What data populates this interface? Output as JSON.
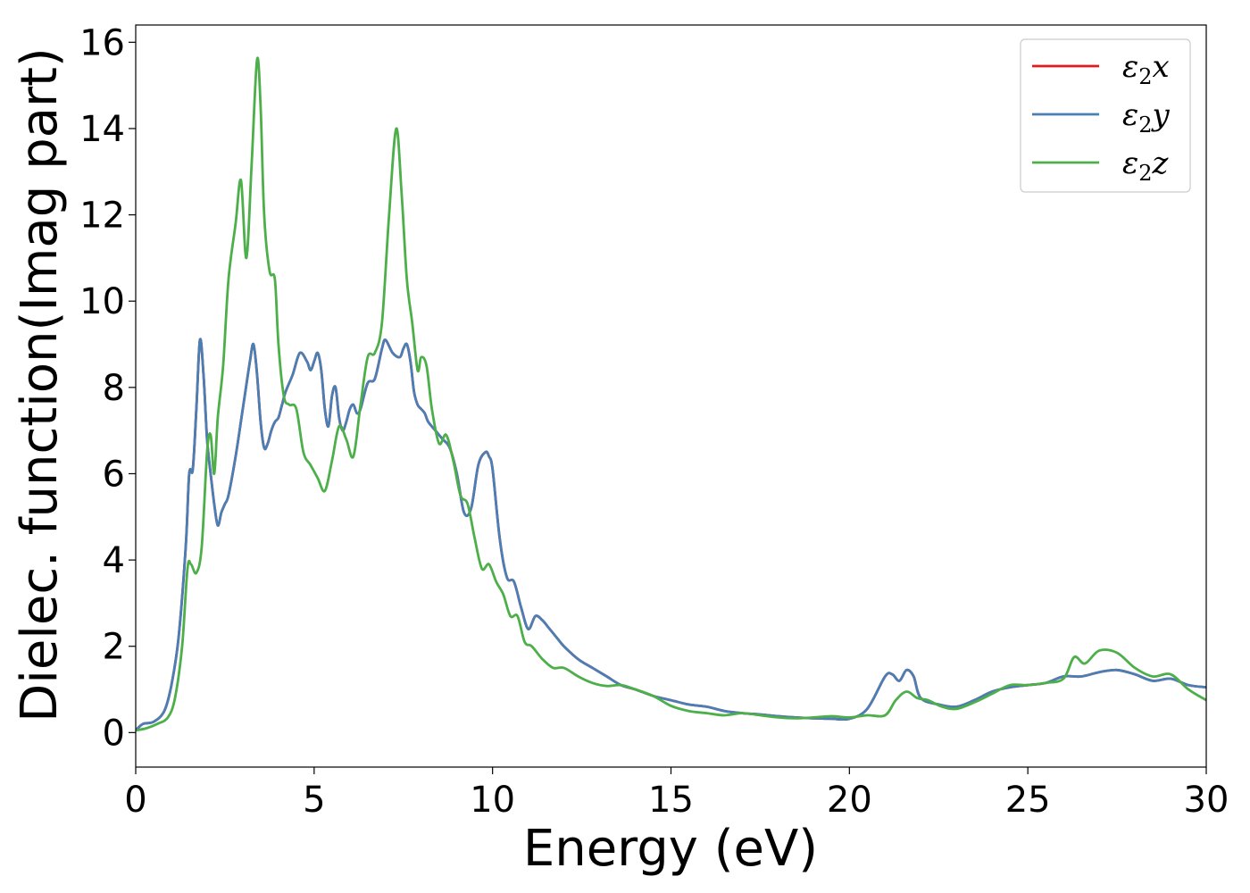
{
  "chart_data": {
    "type": "line",
    "title": "",
    "xlabel": "Energy (eV)",
    "ylabel": "Dielec. function(Imag part)",
    "xlim": [
      0,
      30
    ],
    "ylim": [
      -0.8,
      16.4
    ],
    "xticks": [
      0,
      5,
      10,
      15,
      20,
      25,
      30
    ],
    "yticks": [
      0,
      2,
      4,
      6,
      8,
      10,
      12,
      14,
      16
    ],
    "grid": false,
    "legend_position": "top-right",
    "series": [
      {
        "name": "ε2x",
        "legend_base": "ε",
        "legend_sub": "2",
        "legend_var": "x",
        "color": "#e41a1c",
        "x": [
          0,
          0.2,
          0.5,
          0.8,
          1.0,
          1.2,
          1.4,
          1.5,
          1.6,
          1.7,
          1.8,
          1.9,
          2.0,
          2.1,
          2.2,
          2.3,
          2.4,
          2.5,
          2.6,
          2.8,
          3.0,
          3.2,
          3.3,
          3.4,
          3.5,
          3.6,
          3.7,
          3.8,
          3.9,
          4.0,
          4.1,
          4.2,
          4.4,
          4.6,
          4.8,
          4.9,
          5.0,
          5.1,
          5.2,
          5.3,
          5.4,
          5.5,
          5.6,
          5.7,
          5.8,
          5.9,
          6.0,
          6.1,
          6.2,
          6.3,
          6.5,
          6.7,
          6.9,
          7.0,
          7.2,
          7.4,
          7.5,
          7.6,
          7.7,
          7.8,
          7.9,
          8.0,
          8.1,
          8.2,
          8.4,
          8.6,
          8.8,
          9.0,
          9.2,
          9.4,
          9.6,
          9.8,
          9.9,
          10.0,
          10.2,
          10.4,
          10.6,
          10.8,
          11.0,
          11.2,
          11.4,
          11.6,
          11.8,
          12.0,
          12.4,
          12.8,
          13.2,
          13.6,
          14.0,
          14.5,
          15.0,
          15.5,
          16.0,
          16.5,
          17.0,
          17.5,
          18.0,
          18.5,
          19.0,
          19.5,
          20.0,
          20.5,
          21.0,
          21.2,
          21.4,
          21.6,
          21.8,
          22.0,
          22.5,
          23.0,
          23.5,
          24.0,
          24.5,
          25.0,
          25.5,
          26.0,
          26.5,
          27.0,
          27.5,
          28.0,
          28.5,
          29.0,
          29.5,
          30.0
        ],
        "y": [
          0.05,
          0.2,
          0.25,
          0.5,
          1.1,
          2.2,
          4.3,
          6.0,
          6.1,
          7.5,
          9.1,
          8.3,
          6.8,
          6.0,
          5.3,
          4.8,
          5.1,
          5.3,
          5.5,
          6.4,
          7.5,
          8.6,
          9.0,
          8.3,
          7.2,
          6.6,
          6.7,
          7.0,
          7.2,
          7.3,
          7.6,
          7.9,
          8.3,
          8.8,
          8.6,
          8.4,
          8.6,
          8.8,
          8.4,
          7.5,
          7.1,
          7.8,
          8.0,
          7.3,
          7.0,
          7.2,
          7.5,
          7.6,
          7.4,
          7.5,
          8.1,
          8.2,
          8.9,
          9.1,
          8.8,
          8.7,
          8.9,
          9.0,
          8.6,
          7.9,
          7.6,
          7.5,
          7.4,
          7.2,
          7.0,
          6.8,
          6.6,
          6.0,
          5.1,
          5.2,
          6.2,
          6.5,
          6.4,
          6.1,
          4.5,
          3.6,
          3.5,
          2.9,
          2.4,
          2.7,
          2.6,
          2.4,
          2.2,
          2.0,
          1.7,
          1.5,
          1.3,
          1.1,
          1.0,
          0.85,
          0.75,
          0.65,
          0.6,
          0.5,
          0.45,
          0.42,
          0.38,
          0.35,
          0.33,
          0.32,
          0.32,
          0.55,
          1.3,
          1.35,
          1.2,
          1.45,
          1.3,
          0.8,
          0.65,
          0.6,
          0.75,
          0.95,
          1.05,
          1.1,
          1.15,
          1.3,
          1.3,
          1.4,
          1.45,
          1.35,
          1.2,
          1.25,
          1.1,
          1.05
        ]
      },
      {
        "name": "ε2y",
        "legend_base": "ε",
        "legend_sub": "2",
        "legend_var": "y",
        "color": "#4a7fb5",
        "x": [
          0,
          0.2,
          0.5,
          0.8,
          1.0,
          1.2,
          1.4,
          1.5,
          1.6,
          1.7,
          1.8,
          1.9,
          2.0,
          2.1,
          2.2,
          2.3,
          2.4,
          2.5,
          2.6,
          2.8,
          3.0,
          3.2,
          3.3,
          3.4,
          3.5,
          3.6,
          3.7,
          3.8,
          3.9,
          4.0,
          4.1,
          4.2,
          4.4,
          4.6,
          4.8,
          4.9,
          5.0,
          5.1,
          5.2,
          5.3,
          5.4,
          5.5,
          5.6,
          5.7,
          5.8,
          5.9,
          6.0,
          6.1,
          6.2,
          6.3,
          6.5,
          6.7,
          6.9,
          7.0,
          7.2,
          7.4,
          7.5,
          7.6,
          7.7,
          7.8,
          7.9,
          8.0,
          8.1,
          8.2,
          8.4,
          8.6,
          8.8,
          9.0,
          9.2,
          9.4,
          9.6,
          9.8,
          9.9,
          10.0,
          10.2,
          10.4,
          10.6,
          10.8,
          11.0,
          11.2,
          11.4,
          11.6,
          11.8,
          12.0,
          12.4,
          12.8,
          13.2,
          13.6,
          14.0,
          14.5,
          15.0,
          15.5,
          16.0,
          16.5,
          17.0,
          17.5,
          18.0,
          18.5,
          19.0,
          19.5,
          20.0,
          20.5,
          21.0,
          21.2,
          21.4,
          21.6,
          21.8,
          22.0,
          22.5,
          23.0,
          23.5,
          24.0,
          24.5,
          25.0,
          25.5,
          26.0,
          26.5,
          27.0,
          27.5,
          28.0,
          28.5,
          29.0,
          29.5,
          30.0
        ],
        "y": [
          0.05,
          0.2,
          0.25,
          0.5,
          1.1,
          2.2,
          4.3,
          6.0,
          6.1,
          7.5,
          9.1,
          8.3,
          6.8,
          6.0,
          5.3,
          4.8,
          5.1,
          5.3,
          5.5,
          6.4,
          7.5,
          8.6,
          9.0,
          8.3,
          7.2,
          6.6,
          6.7,
          7.0,
          7.2,
          7.3,
          7.6,
          7.9,
          8.3,
          8.8,
          8.6,
          8.4,
          8.6,
          8.8,
          8.4,
          7.5,
          7.1,
          7.8,
          8.0,
          7.3,
          7.0,
          7.2,
          7.5,
          7.6,
          7.4,
          7.5,
          8.1,
          8.2,
          8.9,
          9.1,
          8.8,
          8.7,
          8.9,
          9.0,
          8.6,
          7.9,
          7.6,
          7.5,
          7.4,
          7.2,
          7.0,
          6.8,
          6.6,
          6.0,
          5.1,
          5.2,
          6.2,
          6.5,
          6.4,
          6.1,
          4.5,
          3.6,
          3.5,
          2.9,
          2.4,
          2.7,
          2.6,
          2.4,
          2.2,
          2.0,
          1.7,
          1.5,
          1.3,
          1.1,
          1.0,
          0.85,
          0.75,
          0.65,
          0.6,
          0.5,
          0.45,
          0.42,
          0.38,
          0.35,
          0.33,
          0.32,
          0.32,
          0.55,
          1.3,
          1.35,
          1.2,
          1.45,
          1.3,
          0.8,
          0.65,
          0.6,
          0.75,
          0.95,
          1.05,
          1.1,
          1.15,
          1.3,
          1.3,
          1.4,
          1.45,
          1.35,
          1.2,
          1.25,
          1.1,
          1.05
        ]
      },
      {
        "name": "ε2z",
        "legend_base": "ε",
        "legend_sub": "2",
        "legend_var": "z",
        "color": "#4daf4a",
        "x": [
          0,
          0.3,
          0.6,
          0.9,
          1.1,
          1.3,
          1.45,
          1.55,
          1.7,
          1.85,
          2.0,
          2.1,
          2.2,
          2.3,
          2.45,
          2.6,
          2.8,
          2.95,
          3.1,
          3.25,
          3.4,
          3.5,
          3.6,
          3.75,
          3.9,
          4.0,
          4.15,
          4.3,
          4.5,
          4.7,
          4.9,
          5.1,
          5.3,
          5.5,
          5.7,
          5.9,
          6.1,
          6.3,
          6.5,
          6.7,
          6.9,
          7.1,
          7.3,
          7.45,
          7.6,
          7.75,
          7.9,
          8.0,
          8.15,
          8.3,
          8.5,
          8.7,
          8.9,
          9.1,
          9.3,
          9.5,
          9.7,
          9.9,
          10.1,
          10.3,
          10.5,
          10.7,
          10.9,
          11.1,
          11.4,
          11.7,
          12.0,
          12.4,
          12.8,
          13.2,
          13.6,
          14.0,
          14.5,
          15.0,
          15.5,
          16.0,
          16.5,
          17.0,
          17.5,
          18.0,
          18.5,
          19.0,
          19.5,
          20.0,
          20.5,
          21.0,
          21.3,
          21.6,
          21.9,
          22.2,
          22.6,
          23.0,
          23.5,
          24.0,
          24.5,
          25.0,
          25.5,
          26.0,
          26.3,
          26.6,
          27.0,
          27.5,
          28.0,
          28.5,
          29.0,
          29.5,
          30.0
        ],
        "y": [
          0.05,
          0.1,
          0.2,
          0.35,
          0.8,
          2.0,
          3.8,
          3.9,
          3.7,
          4.3,
          6.5,
          6.9,
          6.0,
          7.3,
          8.5,
          10.5,
          11.8,
          12.8,
          11.0,
          13.2,
          15.6,
          14.5,
          12.0,
          10.7,
          10.5,
          9.0,
          7.8,
          7.6,
          7.5,
          6.5,
          6.2,
          5.9,
          5.6,
          6.3,
          7.1,
          6.8,
          6.4,
          7.6,
          8.7,
          8.8,
          9.5,
          12.0,
          14.0,
          12.5,
          10.5,
          9.5,
          8.4,
          8.7,
          8.5,
          7.5,
          6.7,
          6.9,
          6.3,
          5.5,
          5.3,
          4.5,
          3.8,
          3.9,
          3.5,
          3.2,
          2.7,
          2.7,
          2.1,
          2.0,
          1.7,
          1.5,
          1.5,
          1.3,
          1.15,
          1.08,
          1.1,
          1.0,
          0.85,
          0.62,
          0.5,
          0.45,
          0.4,
          0.45,
          0.4,
          0.35,
          0.33,
          0.35,
          0.38,
          0.35,
          0.4,
          0.4,
          0.75,
          0.95,
          0.8,
          0.75,
          0.6,
          0.55,
          0.7,
          0.9,
          1.1,
          1.1,
          1.15,
          1.25,
          1.75,
          1.6,
          1.9,
          1.85,
          1.5,
          1.3,
          1.35,
          1.0,
          0.75
        ]
      }
    ]
  }
}
